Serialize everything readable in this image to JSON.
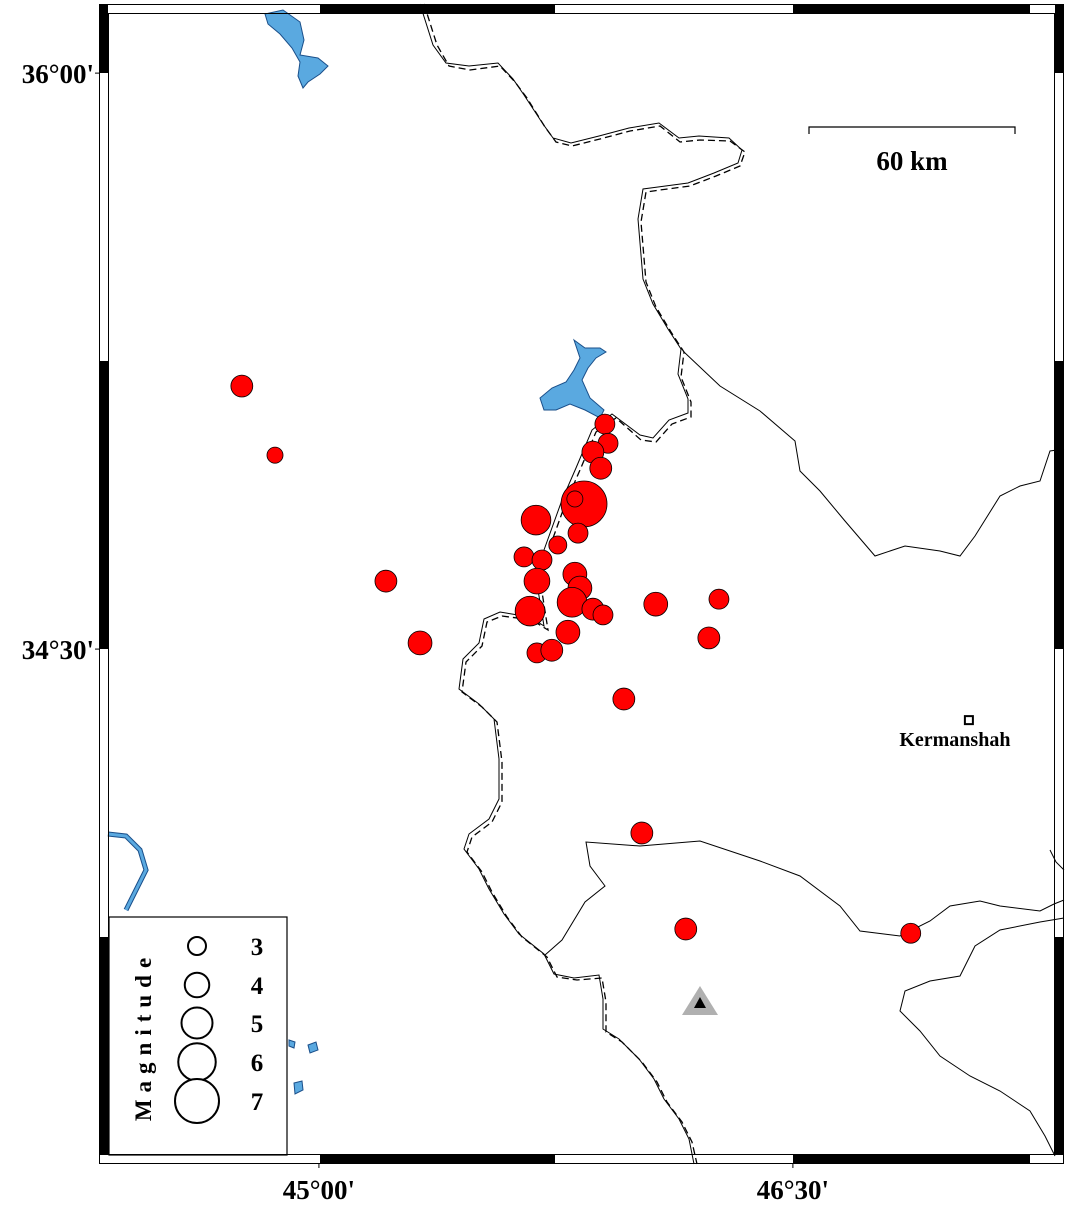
{
  "map": {
    "lon_range": [
      44.304,
      47.358
    ],
    "lat_range": [
      33.159,
      36.18
    ],
    "lon_ticks": [
      {
        "value": 45,
        "label": "45°00'"
      },
      {
        "value": 46.5,
        "label": "46°30'"
      }
    ],
    "lat_ticks": [
      {
        "value": 36,
        "label": "36°00'"
      },
      {
        "value": 34.5,
        "label": "34°30'"
      }
    ],
    "event_color": "#ff0000",
    "events": {
      "lon": [
        44.756,
        44.861,
        45.212,
        45.32,
        45.687,
        45.839,
        45.81,
        45.905,
        45.915,
        45.867,
        45.892,
        45.82,
        45.756,
        45.649,
        45.706,
        45.69,
        45.81,
        45.826,
        45.668,
        45.801,
        45.867,
        45.899,
        45.788,
        45.69,
        45.737,
        46.066,
        46.266,
        46.234,
        45.965,
        46.022,
        46.161,
        46.873
      ],
      "lat": [
        35.185,
        35.005,
        34.677,
        34.516,
        34.836,
        34.878,
        34.891,
        35.086,
        35.036,
        35.013,
        34.971,
        34.802,
        34.771,
        34.74,
        34.732,
        34.677,
        34.695,
        34.659,
        34.599,
        34.622,
        34.604,
        34.589,
        34.544,
        34.49,
        34.497,
        34.617,
        34.63,
        34.529,
        34.37,
        34.021,
        33.771,
        33.76
      ],
      "magnitude": [
        3.6,
        2.7,
        3.6,
        3.9,
        4.8,
        7.3,
        2.7,
        3.3,
        3.3,
        3.6,
        3.6,
        3.3,
        3.0,
        3.3,
        3.3,
        4.2,
        3.9,
        3.9,
        4.8,
        4.8,
        3.6,
        3.3,
        3.9,
        3.3,
        3.6,
        3.9,
        3.3,
        3.6,
        3.6,
        3.6,
        3.6,
        3.3
      ]
    },
    "city": {
      "name": "Kermanshah",
      "lon": 47.057,
      "lat": 34.315
    },
    "station": {
      "lon": 46.206,
      "lat": 33.581
    },
    "scale_bar": "60 km",
    "legend": {
      "title": "Magnitude",
      "magnitudes": [
        3,
        4,
        5,
        6,
        7
      ]
    }
  }
}
